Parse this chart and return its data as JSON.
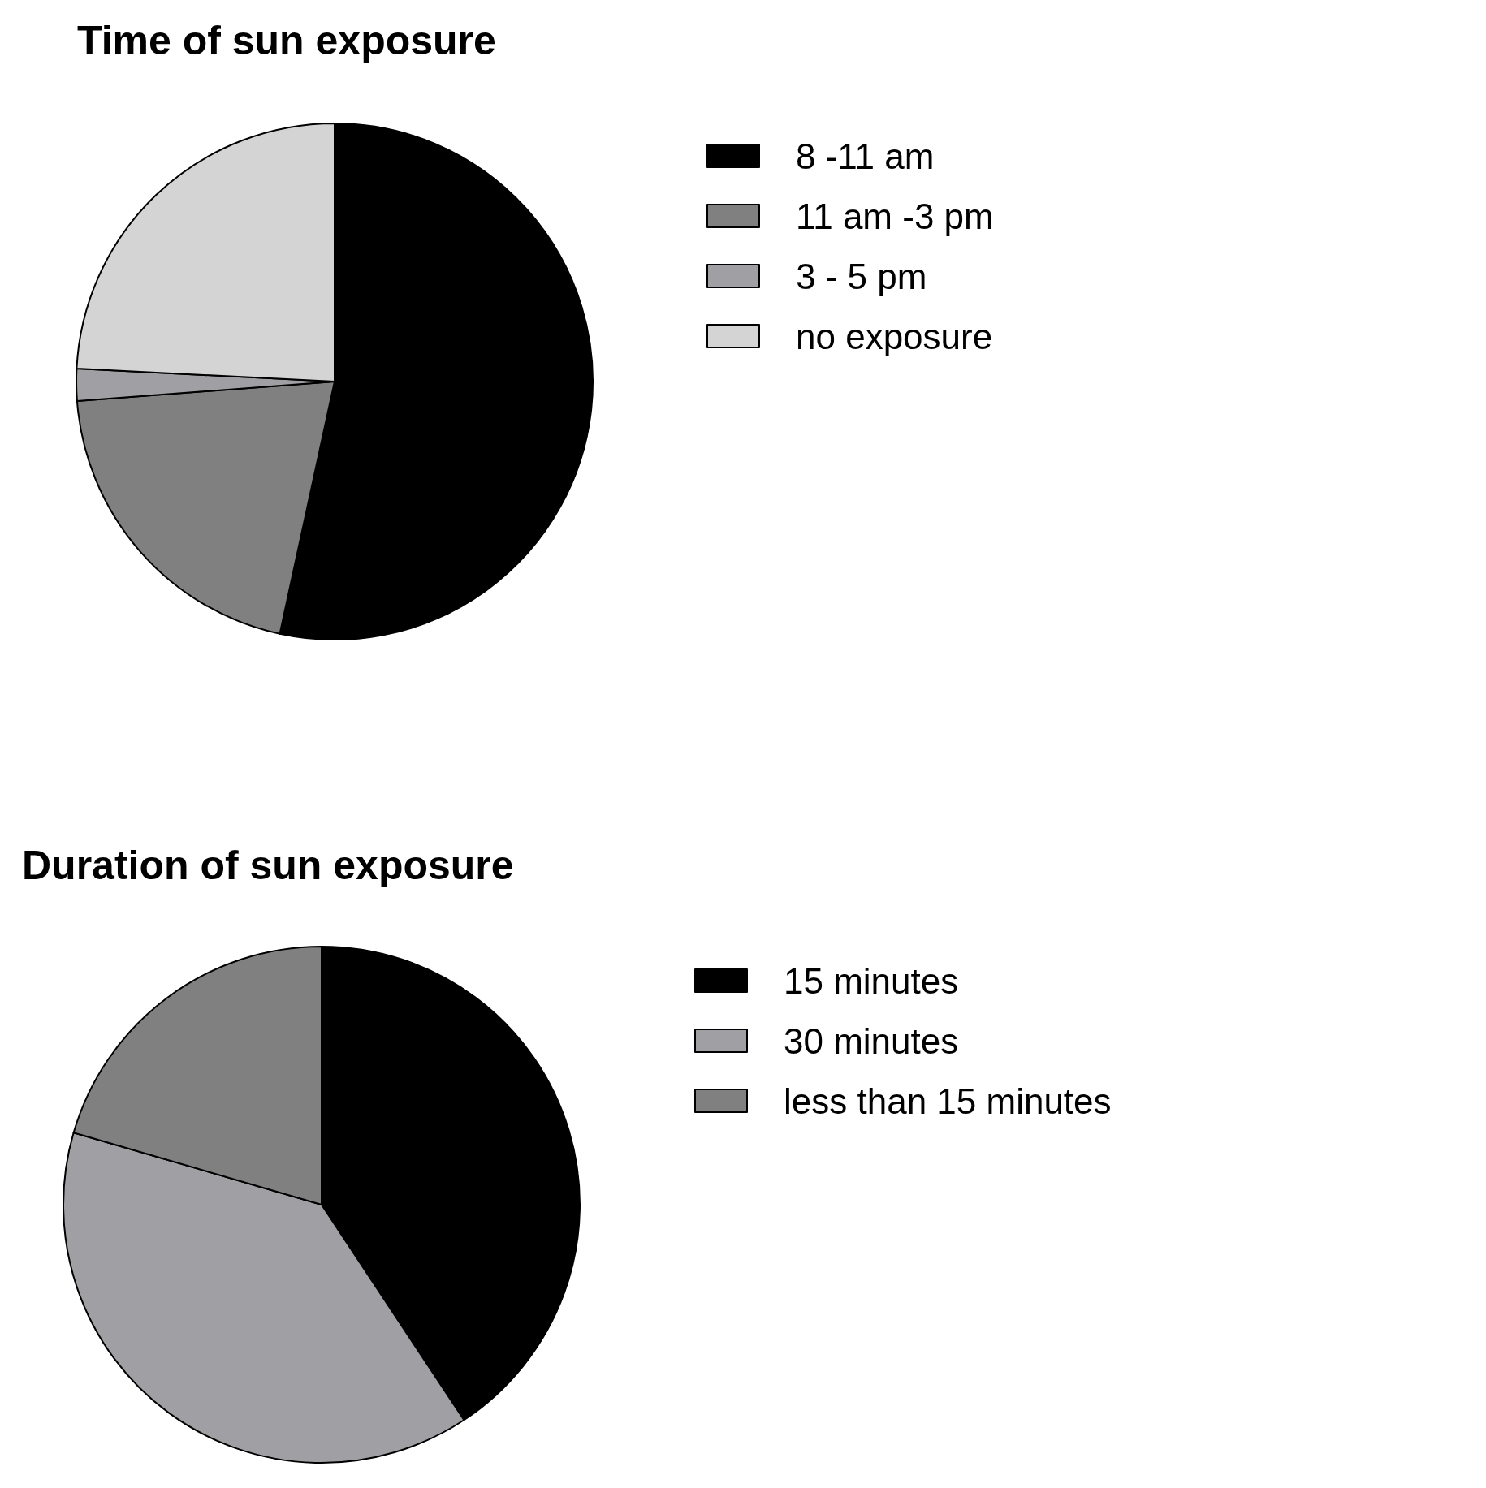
{
  "chart_data": [
    {
      "type": "pie",
      "title": "Time of sun exposure",
      "categories": [
        "8 -11 am",
        "11 am -3 pm",
        "3 - 5 pm",
        "no exposure"
      ],
      "values": [
        53.4,
        20.4,
        2,
        24.2
      ],
      "colors": [
        "#000000",
        "#808080",
        "#a0a0a4",
        "#d4d4d4"
      ],
      "legend": "right"
    },
    {
      "type": "pie",
      "title": "Duration of sun exposure",
      "categories": [
        "15 minutes",
        "30 minutes",
        "less than 15 minutes"
      ],
      "values": [
        40.7,
        38.8,
        20.5
      ],
      "colors": [
        "#000000",
        "#a0a0a4",
        "#808080"
      ],
      "legend": "right"
    }
  ]
}
